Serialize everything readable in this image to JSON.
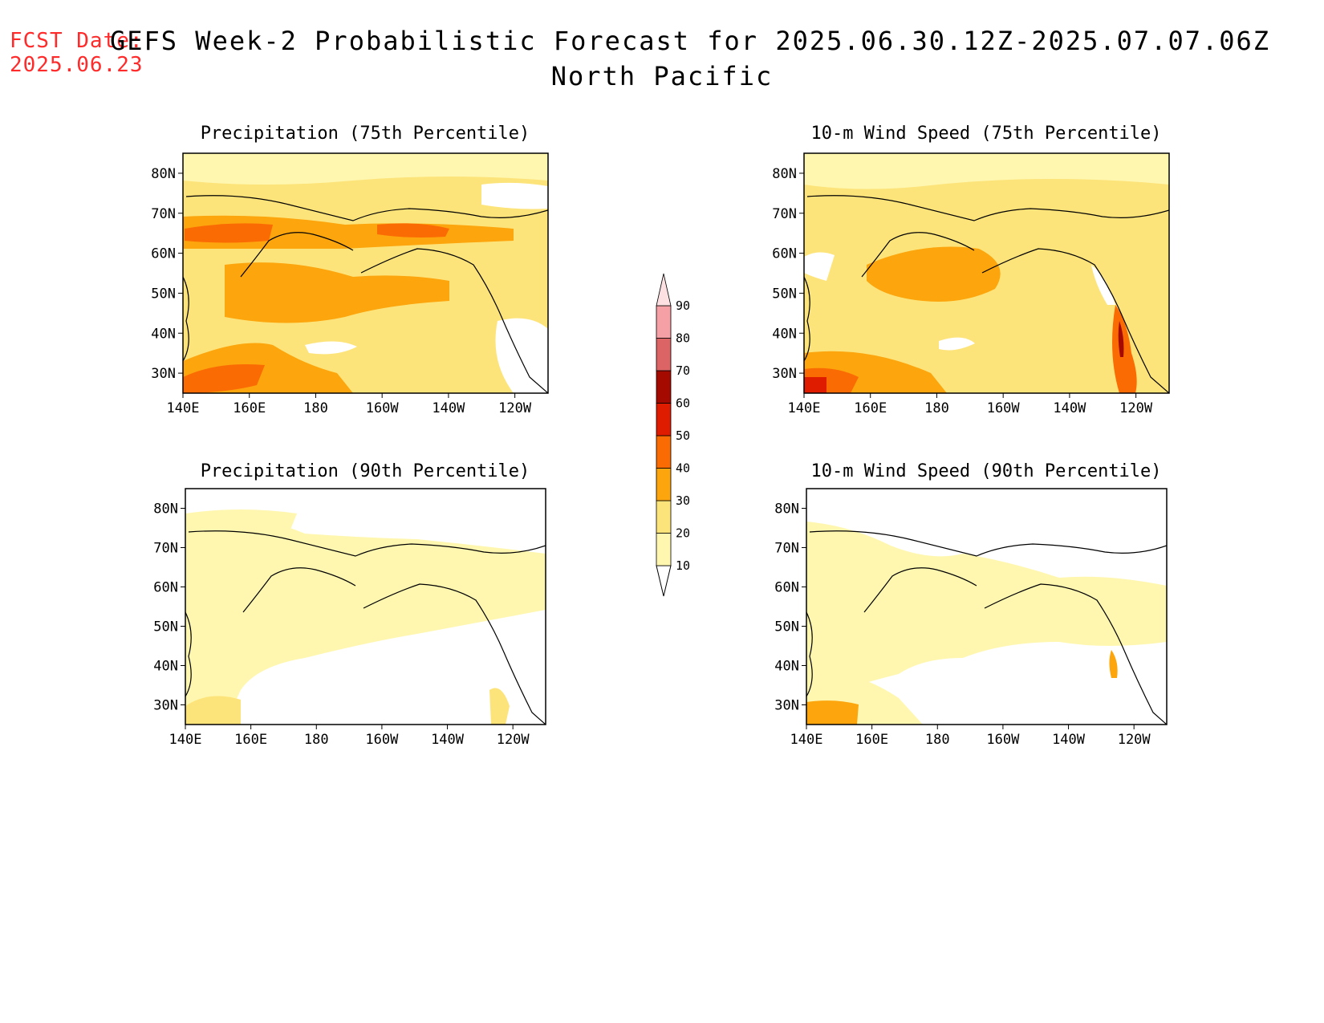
{
  "header": {
    "fcst_label": "FCST Date:",
    "fcst_date": "2025.06.23",
    "title": "GEFS Week-2 Probabilistic Forecast for 2025.06.30.12Z-2025.07.07.06Z",
    "region": "North Pacific"
  },
  "panels": [
    {
      "title": "Precipitation (75th Percentile)"
    },
    {
      "title": "10-m Wind Speed (75th Percentile)"
    },
    {
      "title": "Precipitation (90th Percentile)"
    },
    {
      "title": "10-m Wind Speed (90th Percentile)"
    }
  ],
  "axes": {
    "lat_labels": [
      "80N",
      "70N",
      "60N",
      "50N",
      "40N",
      "30N"
    ],
    "lon_labels": [
      "140E",
      "160E",
      "180",
      "160W",
      "140W",
      "120W"
    ]
  },
  "colorbar": {
    "levels": [
      "10",
      "20",
      "30",
      "40",
      "50",
      "60",
      "70",
      "80",
      "90"
    ],
    "colors": [
      "#fff7b0",
      "#fde47a",
      "#fca50d",
      "#fb6b04",
      "#e01c00",
      "#a50a00",
      "#dd6464",
      "#f4a0a4",
      "#fde0e2"
    ]
  },
  "chart_data": [
    {
      "type": "heatmap",
      "title": "Precipitation (75th Percentile)",
      "xlim": [
        "140E",
        "110W"
      ],
      "ylim": [
        "25N",
        "85N"
      ],
      "unit": "%"
    },
    {
      "type": "heatmap",
      "title": "10-m Wind Speed (75th Percentile)",
      "xlim": [
        "140E",
        "110W"
      ],
      "ylim": [
        "25N",
        "85N"
      ],
      "unit": "%"
    },
    {
      "type": "heatmap",
      "title": "Precipitation (90th Percentile)",
      "xlim": [
        "140E",
        "110W"
      ],
      "ylim": [
        "25N",
        "85N"
      ],
      "unit": "%"
    },
    {
      "type": "heatmap",
      "title": "10-m Wind Speed (90th Percentile)",
      "xlim": [
        "140E",
        "110W"
      ],
      "ylim": [
        "25N",
        "85N"
      ],
      "unit": "%"
    }
  ]
}
